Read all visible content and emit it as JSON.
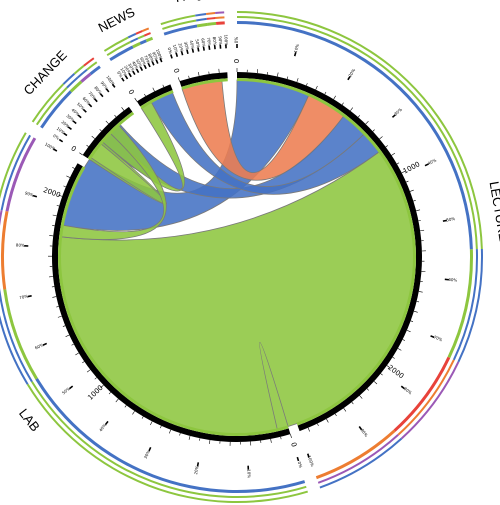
{
  "chart_data": {
    "type": "chord",
    "title": "",
    "segments": [
      {
        "name": "LECTURE",
        "total": 2545,
        "colors": {
          "own": "#4472c4",
          "to": "#8dc63f"
        }
      },
      {
        "name": "LAB",
        "total": 2180,
        "colors": {
          "own": "#4472c4",
          "to": "#8dc63f"
        }
      },
      {
        "name": "CHANGE",
        "total": 330,
        "colors": {
          "own": "#4472c4",
          "to": "#8dc63f"
        }
      },
      {
        "name": "NEWS",
        "total": 185,
        "colors": {
          "own": "#4472c4",
          "to": "#8dc63f"
        }
      },
      {
        "name": "FAQ",
        "total": 240,
        "colors": {
          "own": "#4472c4",
          "to": "#8dc63f"
        }
      }
    ],
    "ribbons": [
      {
        "from": "LAB",
        "to": "LECTURE",
        "value": 1800,
        "color": "#8dc63f"
      },
      {
        "from": "LECTURE",
        "to": "LAB",
        "value": 380,
        "color": "#4472c4"
      },
      {
        "from": "LECTURE",
        "to": "FAQ",
        "value": 210,
        "color": "#ed7d51"
      },
      {
        "from": "LECTURE",
        "to": "CHANGE",
        "value": 140,
        "color": "#4472c4"
      },
      {
        "from": "LECTURE",
        "to": "NEWS",
        "value": 120,
        "color": "#4472c4"
      },
      {
        "from": "CHANGE",
        "to": "LAB",
        "value": 100,
        "color": "#8dc63f"
      },
      {
        "from": "NEWS",
        "to": "LAB",
        "value": 60,
        "color": "#8dc63f"
      },
      {
        "from": "LAB",
        "to": "LAB",
        "value": 60,
        "color": "#8dc63f"
      }
    ],
    "tick_labels_count": [
      "0",
      "1000",
      "2000"
    ],
    "tick_labels_percent": [
      "0%",
      "10%",
      "20%",
      "30%",
      "40%",
      "50%",
      "60%",
      "70%",
      "80%",
      "90%",
      "100%"
    ]
  }
}
